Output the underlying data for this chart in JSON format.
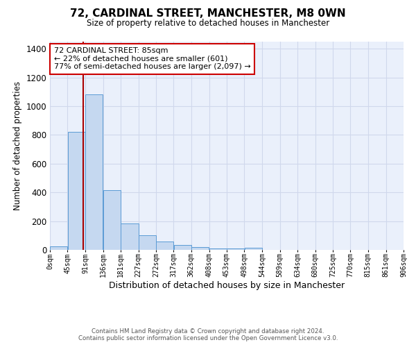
{
  "title": "72, CARDINAL STREET, MANCHESTER, M8 0WN",
  "subtitle": "Size of property relative to detached houses in Manchester",
  "xlabel": "Distribution of detached houses by size in Manchester",
  "ylabel": "Number of detached properties",
  "bar_color": "#c5d8f0",
  "bar_edge_color": "#5b9bd5",
  "background_color": "#eaf0fb",
  "grid_color": "#d0d8ec",
  "annotation_text": "72 CARDINAL STREET: 85sqm\n← 22% of detached houses are smaller (601)\n77% of semi-detached houses are larger (2,097) →",
  "vline_x": 85,
  "vline_color": "#aa0000",
  "footer_line1": "Contains HM Land Registry data © Crown copyright and database right 2024.",
  "footer_line2": "Contains public sector information licensed under the Open Government Licence v3.0.",
  "bin_edges": [
    0,
    45,
    91,
    136,
    181,
    227,
    272,
    317,
    362,
    408,
    453,
    498,
    544,
    589,
    634,
    680,
    725,
    770,
    815,
    861,
    906
  ],
  "bin_counts": [
    22,
    820,
    1085,
    415,
    185,
    100,
    57,
    33,
    20,
    10,
    8,
    13,
    2,
    2,
    2,
    1,
    1,
    1,
    1,
    1
  ],
  "ylim": [
    0,
    1450
  ],
  "yticks": [
    0,
    200,
    400,
    600,
    800,
    1000,
    1200,
    1400
  ]
}
